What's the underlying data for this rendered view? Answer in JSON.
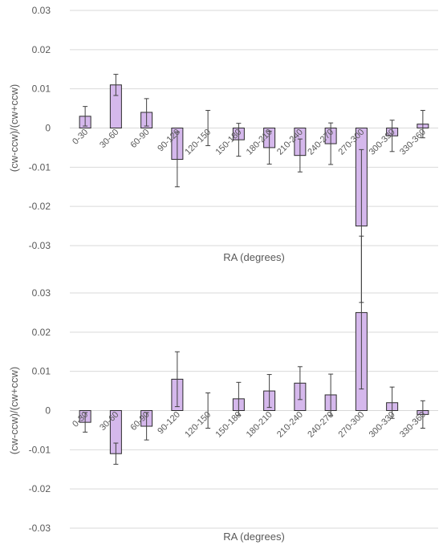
{
  "chart_data": [
    {
      "type": "bar",
      "title": "",
      "xlabel": "RA (degrees)",
      "ylabel": "(cw-ccw)/(cw+ccw)",
      "ylim": [
        -0.03,
        0.03
      ],
      "yticks": [
        "0.03",
        "0.02",
        "0.01",
        "0",
        "-0.01",
        "-0.02",
        "-0.03"
      ],
      "grid": true,
      "legend": "none",
      "bar_color": "#d5b8ec",
      "bar_edge_color": "#2b2b2b",
      "categories": [
        "0-30",
        "30-60",
        "60-90",
        "90-120",
        "120-150",
        "150-180",
        "180-210",
        "210-240",
        "240-270",
        "270-300",
        "300-330",
        "330-360"
      ],
      "values": [
        0.003,
        0.011,
        0.004,
        -0.008,
        0,
        -0.003,
        -0.005,
        -0.007,
        -0.004,
        -0.025,
        -0.002,
        0.001
      ],
      "error": [
        0.0025,
        0.0027,
        0.0035,
        0.007,
        0.0045,
        0.0042,
        0.0042,
        0.0042,
        0.0053,
        0.0195,
        0.004,
        0.0035
      ]
    },
    {
      "type": "bar",
      "title": "",
      "xlabel": "RA (degrees)",
      "ylabel": "(cw-ccw)/(cw+ccw)",
      "ylim": [
        -0.03,
        0.03
      ],
      "yticks": [
        "0.03",
        "0.02",
        "0.01",
        "0",
        "-0.01",
        "-0.02",
        "-0.03"
      ],
      "grid": true,
      "legend": "none",
      "bar_color": "#d5b8ec",
      "bar_edge_color": "#2b2b2b",
      "categories": [
        "0-30",
        "30-60",
        "60-90",
        "90-120",
        "120-150",
        "150-180",
        "180-210",
        "210-240",
        "240-270",
        "270-300",
        "300-330",
        "330-360"
      ],
      "values": [
        -0.003,
        -0.011,
        -0.004,
        0.008,
        0,
        0.003,
        0.005,
        0.007,
        0.004,
        0.025,
        0.002,
        -0.001
      ],
      "error": [
        0.0025,
        0.0027,
        0.0035,
        0.007,
        0.0045,
        0.0042,
        0.0042,
        0.0042,
        0.0053,
        0.0195,
        0.004,
        0.0035
      ]
    }
  ]
}
